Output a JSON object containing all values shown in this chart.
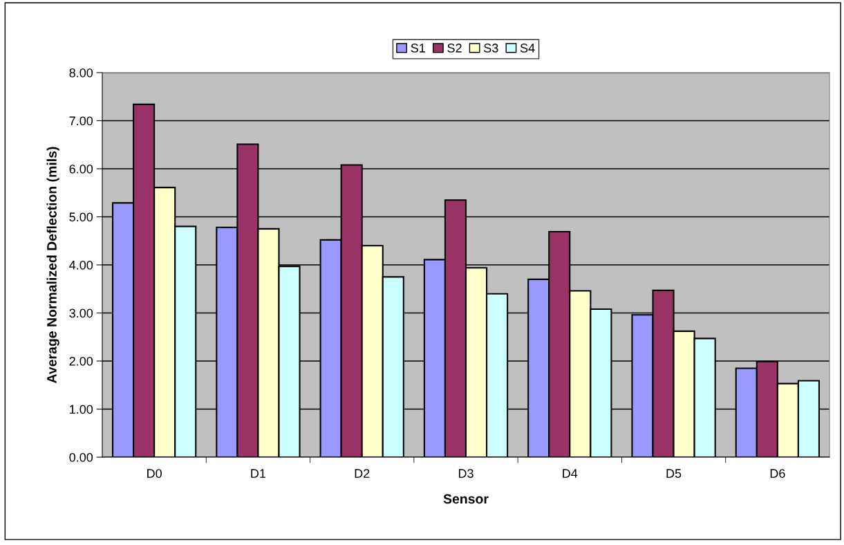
{
  "chart_data": {
    "type": "bar",
    "xlabel": "Sensor",
    "ylabel": "Average Normalized Deflection (mils)",
    "categories": [
      "D0",
      "D1",
      "D2",
      "D3",
      "D4",
      "D5",
      "D6"
    ],
    "series": [
      {
        "name": "S1",
        "color": "#9999ff",
        "values": [
          5.29,
          4.78,
          4.52,
          4.11,
          3.7,
          2.96,
          1.85
        ]
      },
      {
        "name": "S2",
        "color": "#993366",
        "values": [
          7.34,
          6.51,
          6.08,
          5.35,
          4.69,
          3.47,
          1.99
        ]
      },
      {
        "name": "S3",
        "color": "#ffffcc",
        "values": [
          5.61,
          4.75,
          4.4,
          3.94,
          3.46,
          2.62,
          1.53
        ]
      },
      {
        "name": "S4",
        "color": "#ccffff",
        "values": [
          4.8,
          3.97,
          3.75,
          3.4,
          3.08,
          2.47,
          1.59
        ]
      }
    ],
    "ylim": [
      0,
      8
    ],
    "yticks": [
      {
        "value": 0,
        "label": "0.00"
      },
      {
        "value": 1,
        "label": "1.00"
      },
      {
        "value": 2,
        "label": "2.00"
      },
      {
        "value": 3,
        "label": "3.00"
      },
      {
        "value": 4,
        "label": "4.00"
      },
      {
        "value": 5,
        "label": "5.00"
      },
      {
        "value": 6,
        "label": "6.00"
      },
      {
        "value": 7,
        "label": "7.00"
      },
      {
        "value": 8,
        "label": "8.00"
      }
    ],
    "grid": "y",
    "legend": "top"
  }
}
